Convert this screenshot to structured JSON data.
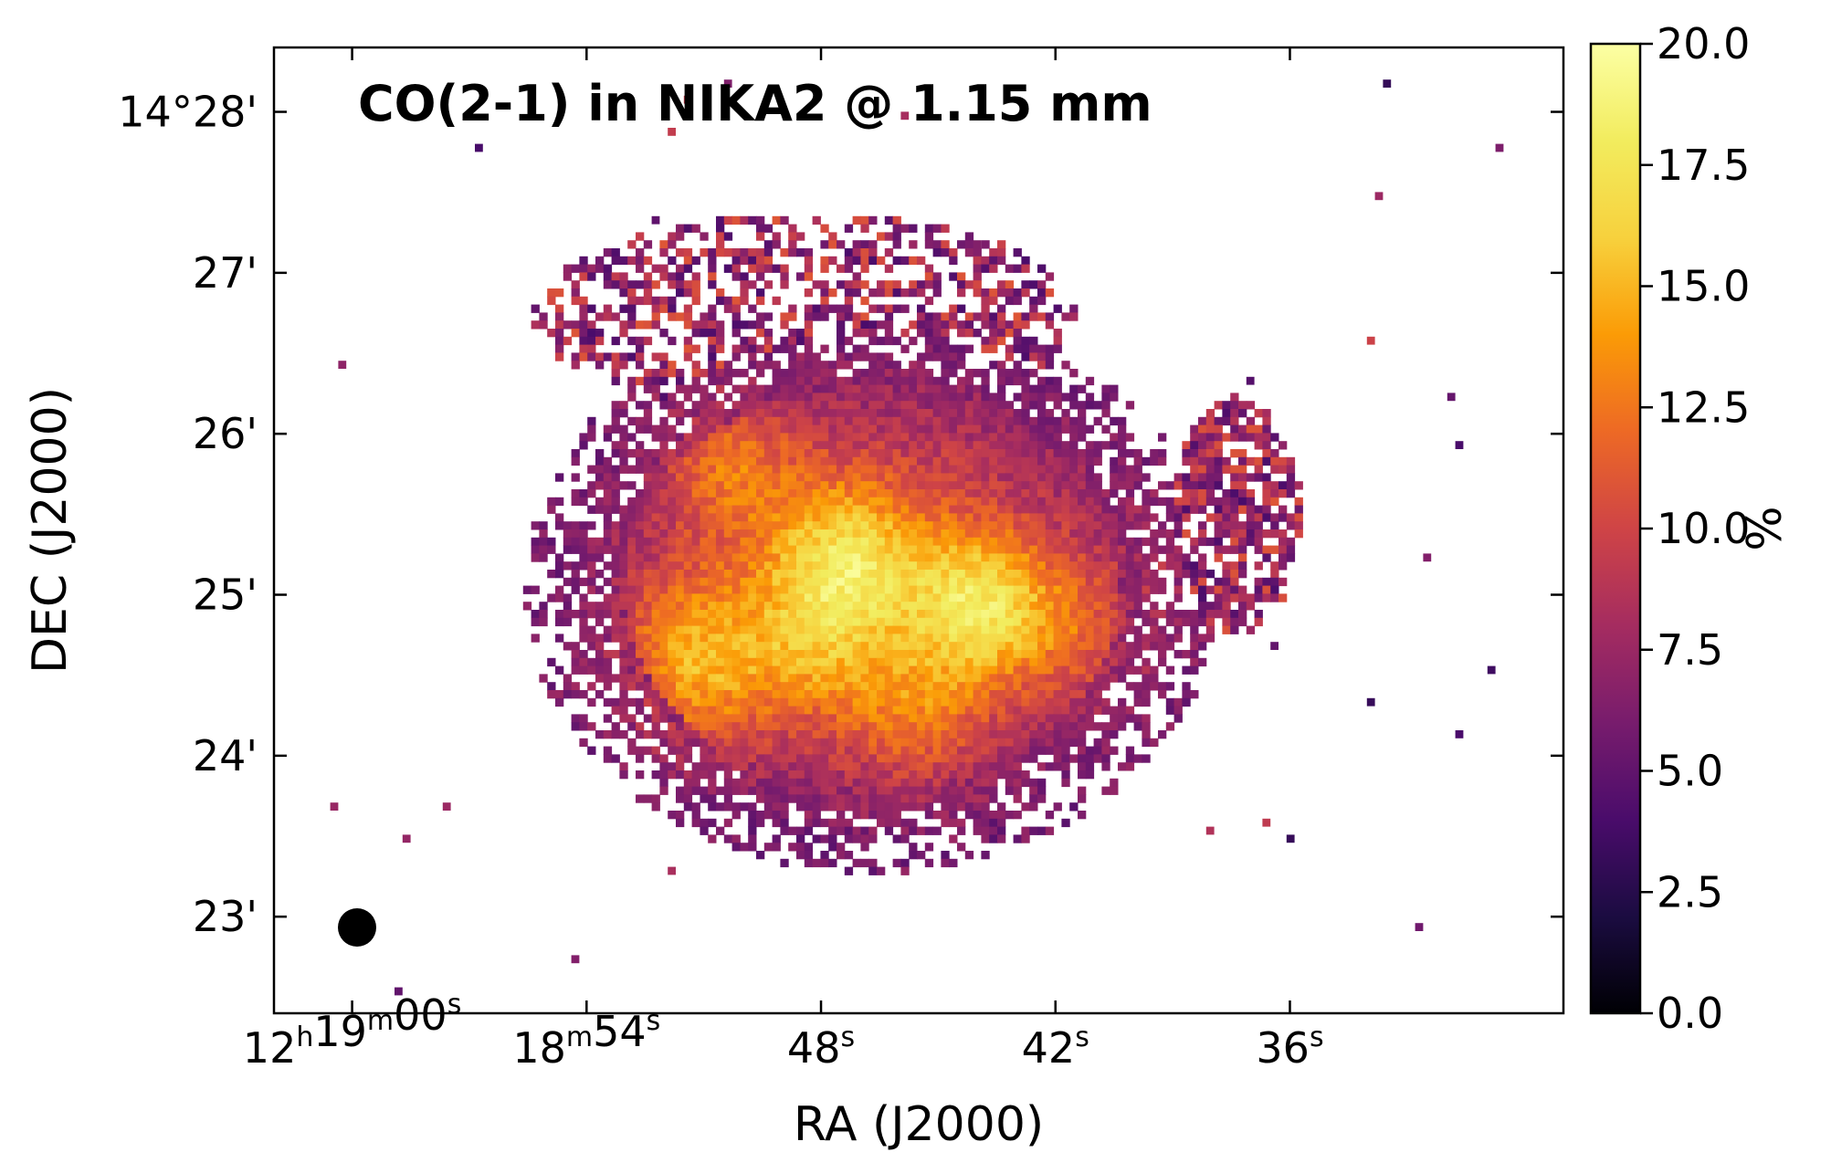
{
  "chart_data": {
    "type": "heatmap",
    "title": "CO(2-1) in NIKA2 @ 1.15 mm",
    "xlabel": "RA (J2000)",
    "ylabel": "DEC  (J2000)",
    "x_ticks": [
      {
        "h": "12",
        "m": "19",
        "s": "00",
        "label": "12h19m00s"
      },
      {
        "m": "18",
        "s": "54",
        "label": "18m54s"
      },
      {
        "s": "48",
        "label": "48s"
      },
      {
        "s": "42",
        "label": "42s"
      },
      {
        "s": "36",
        "label": "36s"
      }
    ],
    "x_tick_seconds": [
      60,
      54,
      48,
      42,
      36
    ],
    "xlim_seconds": [
      62.0,
      29.0
    ],
    "y_ticks": [
      "14°28'",
      "27'",
      "26'",
      "25'",
      "24'",
      "23'"
    ],
    "y_tick_arcmin": [
      28,
      27,
      26,
      25,
      24,
      23
    ],
    "ylim_arcmin": [
      22.4,
      28.4
    ],
    "colorbar": {
      "label": "%",
      "ticks": [
        "20.0",
        "17.5",
        "15.0",
        "12.5",
        "10.0",
        "7.5",
        "5.0",
        "2.5",
        "0.0"
      ],
      "range": [
        0,
        20
      ],
      "colormap": "inferno"
    },
    "beam": {
      "shape": "circle",
      "location": "bottom-left"
    },
    "map_description": "Pixelated percentage map of a galaxy; values mostly 5-15%, peaking near 20% at the center around RA 12h18m48s, DEC +14°25'; scattered noisy pixels at the edges"
  },
  "colors": {
    "background": "#ffffff",
    "axes": "#000000"
  }
}
